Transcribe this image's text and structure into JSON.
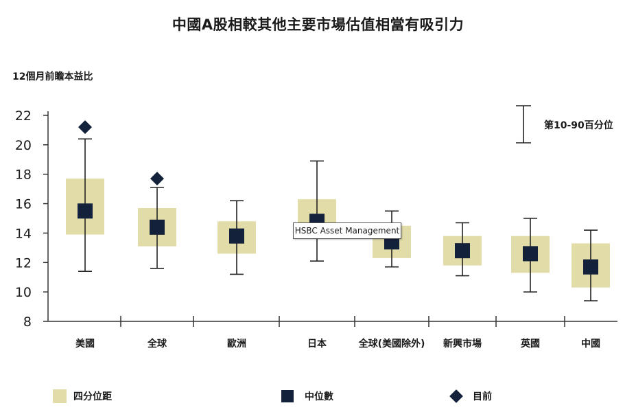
{
  "title": "中國A股相較其他主要市場估值相當有吸引力",
  "tooltip_text": "HSBC Asset Management",
  "chart_data": {
    "type": "box",
    "ylabel": "12個月前瞻本益比",
    "ylim": [
      8,
      22
    ],
    "yticks": [
      8,
      10,
      12,
      14,
      16,
      18,
      20,
      22
    ],
    "categories": [
      "美國",
      "全球",
      "歐洲",
      "日本",
      "全球(美國除外)",
      "新興市場",
      "英國",
      "中國"
    ],
    "p10": [
      11.4,
      11.6,
      11.2,
      12.1,
      11.7,
      11.1,
      10.0,
      9.4
    ],
    "p90": [
      20.4,
      17.1,
      16.2,
      18.9,
      15.5,
      14.7,
      15.0,
      14.2
    ],
    "q1": [
      13.9,
      13.1,
      12.6,
      13.6,
      12.3,
      11.8,
      11.3,
      10.3
    ],
    "q3": [
      17.7,
      15.7,
      14.8,
      16.3,
      14.5,
      13.8,
      13.8,
      13.3
    ],
    "median": [
      15.5,
      14.4,
      13.8,
      14.8,
      13.4,
      12.8,
      12.6,
      11.7
    ],
    "current": [
      21.2,
      17.7,
      null,
      null,
      null,
      null,
      null,
      null
    ],
    "range_legend": "第10-90百分位",
    "legend": {
      "iqr": "四分位距",
      "median": "中位數",
      "current": "目前"
    },
    "colors": {
      "iqr": "#e1dca8",
      "marker": "#14213a",
      "axis": "#333333"
    }
  }
}
